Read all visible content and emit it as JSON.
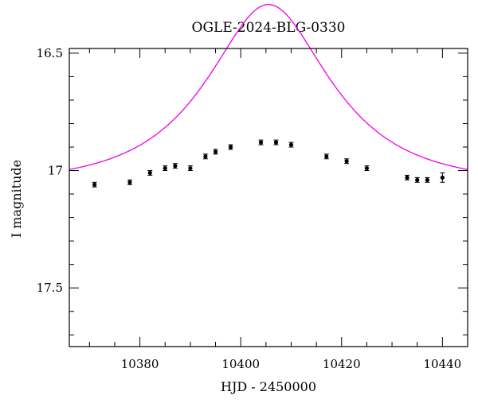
{
  "chart_data": {
    "type": "scatter",
    "title": "OGLE-2024-BLG-0330",
    "xlabel": "HJD - 2450000",
    "ylabel": "I magnitude",
    "xlim": [
      10366,
      10445
    ],
    "ylim": [
      17.75,
      16.48
    ],
    "y_inverted": true,
    "x_ticks": [
      10380,
      10400,
      10420,
      10440
    ],
    "x_tick_labels": [
      "10380",
      "10400",
      "10420",
      "10440"
    ],
    "y_ticks": [
      16.5,
      17,
      17.5
    ],
    "y_tick_labels": [
      "16.5",
      "17",
      "17.5"
    ],
    "x_minor_step": 5,
    "y_minor_step": 0.1,
    "points_color": "#000000",
    "model_color": "#ee00ee",
    "series": [
      {
        "name": "data",
        "x": [
          10371,
          10378,
          10382,
          10385,
          10387,
          10390,
          10393,
          10395,
          10398,
          10404,
          10407,
          10410,
          10417,
          10421,
          10425,
          10433,
          10435,
          10437,
          10440
        ],
        "y": [
          17.06,
          17.05,
          17.01,
          16.99,
          16.98,
          16.99,
          16.94,
          16.92,
          16.9,
          16.88,
          16.88,
          16.89,
          16.94,
          16.96,
          16.99,
          17.03,
          17.04,
          17.04,
          17.03
        ],
        "yerr": [
          0.01,
          0.01,
          0.01,
          0.01,
          0.01,
          0.01,
          0.01,
          0.01,
          0.01,
          0.01,
          0.01,
          0.01,
          0.01,
          0.01,
          0.01,
          0.01,
          0.01,
          0.01,
          0.02
        ]
      }
    ],
    "model": {
      "name": "fit",
      "baseline": 17.055,
      "peak_x": 10405.5,
      "u0": 0.55,
      "tE": 20
    }
  }
}
